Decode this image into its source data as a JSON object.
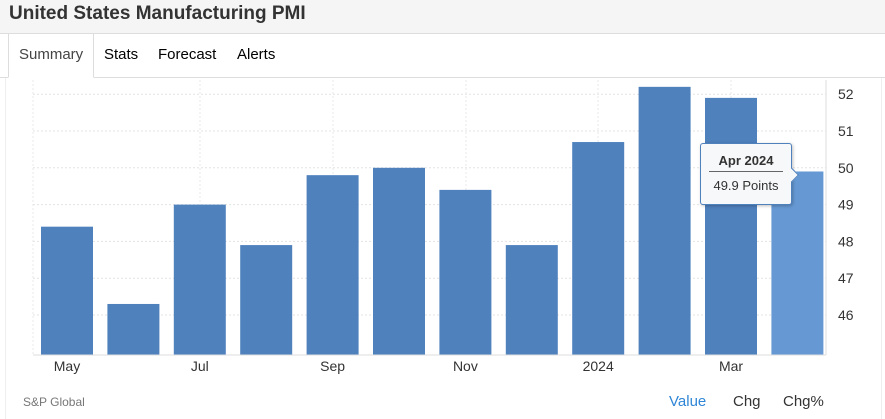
{
  "header": {
    "title": "United States Manufacturing PMI"
  },
  "tabs": [
    {
      "label": "Summary",
      "active": true
    },
    {
      "label": "Stats"
    },
    {
      "label": "Forecast"
    },
    {
      "label": "Alerts"
    }
  ],
  "footer": {
    "source": "S&P Global",
    "options": [
      "Value",
      "Chg",
      "Chg%"
    ],
    "selected": "Value"
  },
  "tooltip": {
    "title": "Apr 2024",
    "value": "49.9 Points"
  },
  "colors": {
    "bar": "#4f81bd",
    "highlight": "#6699d4",
    "accent": "#2f86d6"
  },
  "chart_data": {
    "type": "bar",
    "title": "United States Manufacturing PMI",
    "categories": [
      "May 2023",
      "Jun 2023",
      "Jul 2023",
      "Aug 2023",
      "Sep 2023",
      "Oct 2023",
      "Nov 2023",
      "Dec 2023",
      "Jan 2024",
      "Feb 2024",
      "Mar 2024",
      "Apr 2024"
    ],
    "values": [
      48.4,
      46.3,
      49.0,
      47.9,
      49.8,
      50.0,
      49.4,
      47.9,
      50.7,
      52.2,
      51.9,
      49.9
    ],
    "x_tick_labels": [
      {
        "index": 0,
        "label": "May"
      },
      {
        "index": 2,
        "label": "Jul"
      },
      {
        "index": 4,
        "label": "Sep"
      },
      {
        "index": 6,
        "label": "Nov"
      },
      {
        "index": 8,
        "label": "2024"
      },
      {
        "index": 10,
        "label": "Mar"
      }
    ],
    "y_ticks": [
      46,
      47,
      48,
      49,
      50,
      51,
      52
    ],
    "ylim": [
      44.9,
      52.5
    ],
    "highlighted_index": 11,
    "grid": true,
    "yaxis_side": "right"
  }
}
